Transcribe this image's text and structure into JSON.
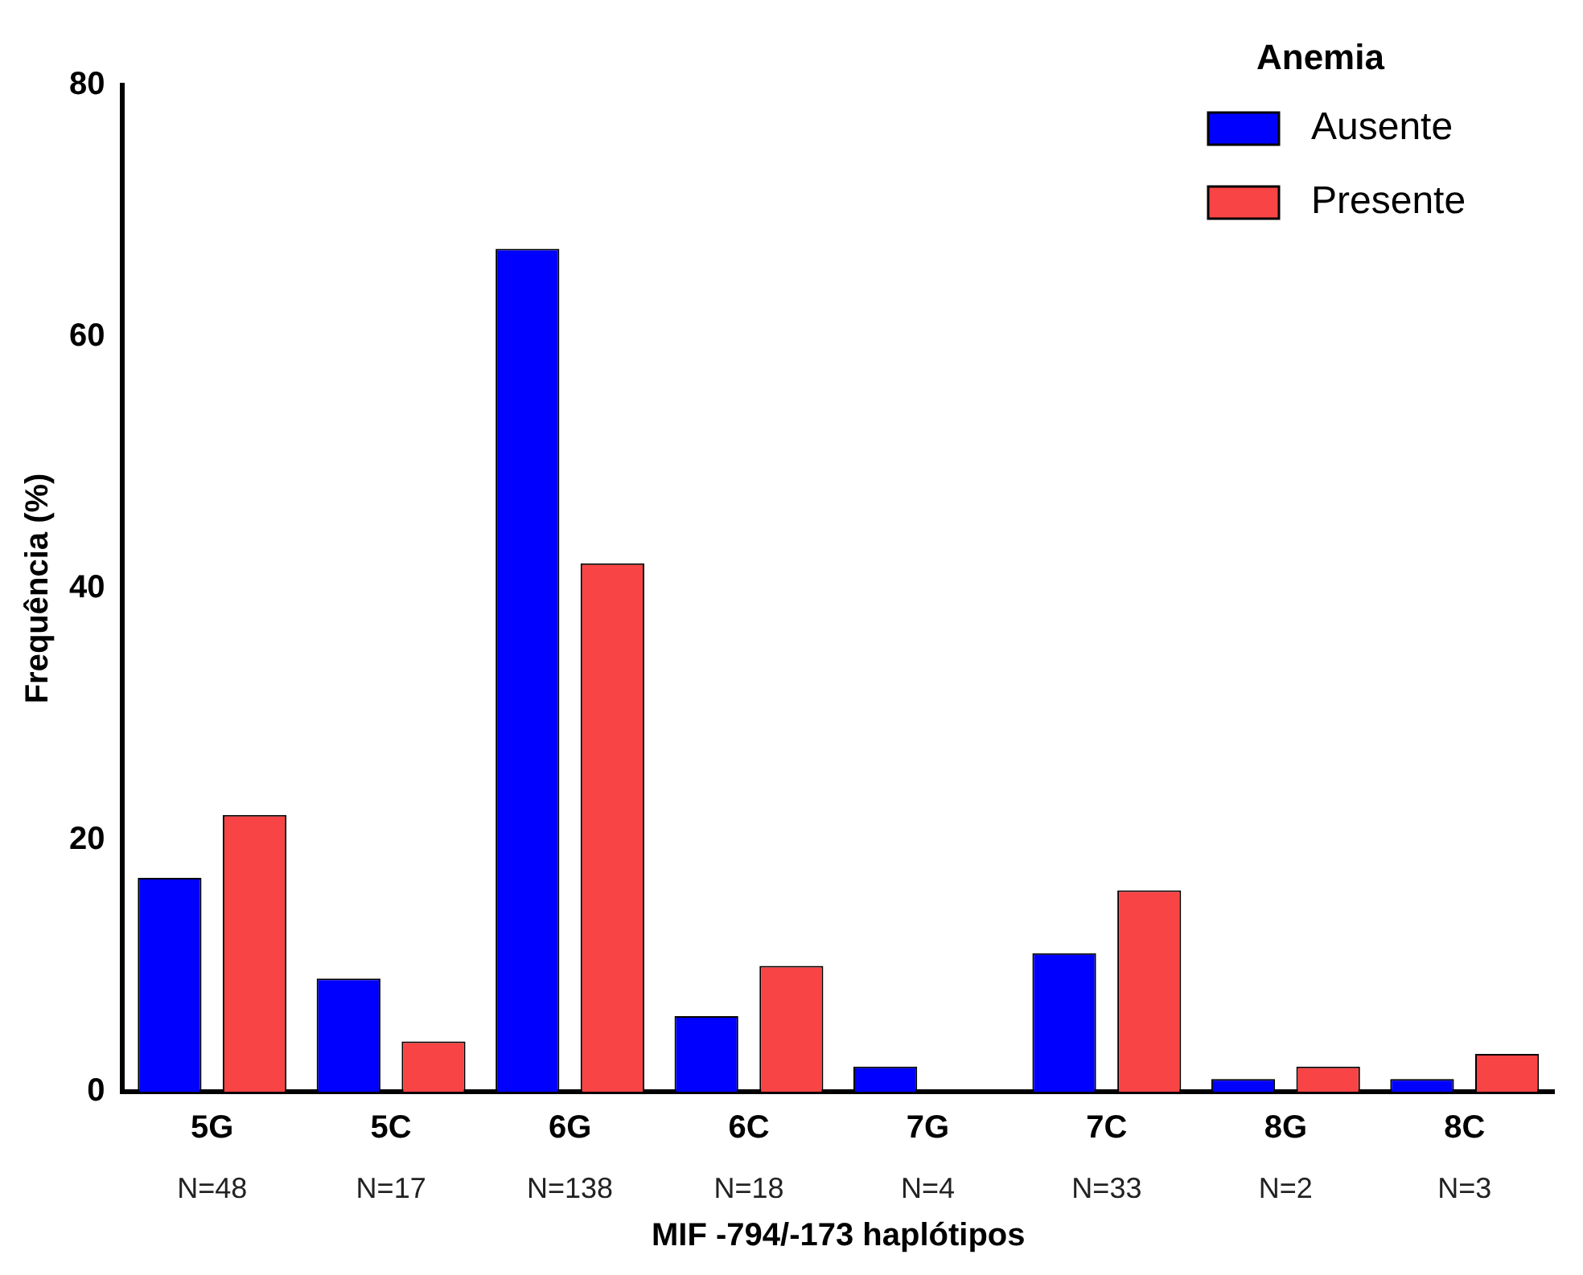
{
  "chart_data": {
    "type": "bar",
    "xlabel": "MIF -794/-173 haplótipos",
    "ylabel": "Frequência (%)",
    "legend_title": "Anemia",
    "categories": [
      "5G",
      "5C",
      "6G",
      "6C",
      "7G",
      "7C",
      "8G",
      "8C"
    ],
    "series": [
      {
        "name": "Ausente",
        "color": "#0000ff",
        "values": [
          17,
          9,
          67,
          6,
          2,
          11,
          1,
          1
        ]
      },
      {
        "name": "Presente",
        "color": "#f84444",
        "values": [
          22,
          4,
          42,
          10,
          0,
          16,
          2,
          3
        ]
      }
    ],
    "ylim": [
      0,
      80
    ],
    "yticks": [
      0,
      20,
      40,
      60,
      80
    ],
    "grid": false,
    "legend": "top right",
    "annotations": [
      "N=48",
      "N=17",
      "N=138",
      "N=18",
      "N=4",
      "N=33",
      "N=2",
      "N=3"
    ]
  }
}
